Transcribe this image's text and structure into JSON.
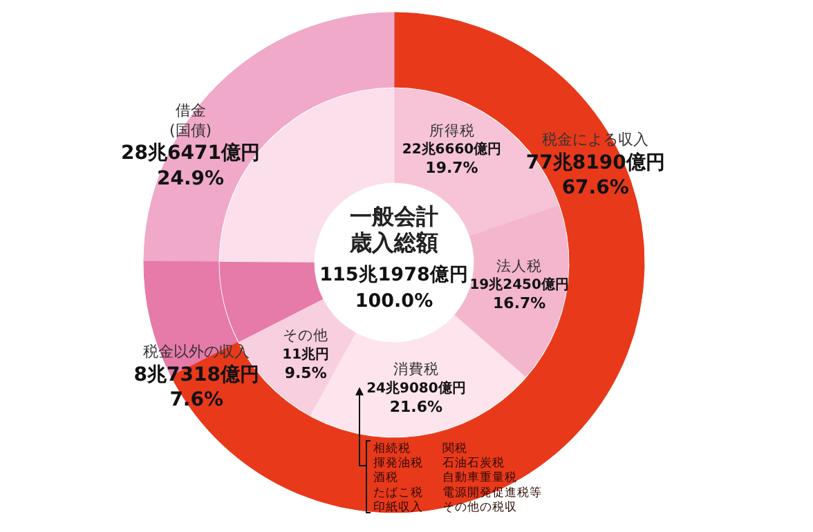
{
  "chart_data": [
    {
      "type": "donut",
      "title": "一般会計歳入総額",
      "subtitle": "115兆1978億円",
      "annotations": [
        "100.0%"
      ],
      "categories": [
        "税金による収入",
        "税金以外の収入",
        "借金\n(国債)"
      ],
      "values": [
        67.6,
        7.6,
        24.9
      ],
      "colors": [
        "#e8391b",
        "#e67aa8",
        "#f0a9c8"
      ],
      "value_labels": [
        "77兆8190億円\n67.6%",
        "8兆7318億円\n7.6%",
        "28兆6471億円\n24.9%"
      ]
    },
    {
      "type": "donut",
      "categories": [
        "所得税",
        "法人税",
        "消費税",
        "その他",
        null,
        null
      ],
      "values": [
        19.7,
        16.7,
        21.6,
        9.5,
        7.6,
        24.9
      ],
      "colors": [
        "#f6c3d7",
        "#f3b6cd",
        "#fde4ed",
        "#f8cfdf",
        "#e67aa8",
        "#fbdfea"
      ],
      "value_labels": [
        "22兆6660億円\n19.7%",
        "19兆2450億円\n16.7%",
        "24兆9080億円\n21.6%",
        "11兆円\n9.5%",
        null,
        null
      ],
      "annotations": [
        "相続税",
        "揮発油税",
        "酒税",
        "たばこ税",
        "印紙収入",
        "関税",
        "石油石炭税",
        "自動車重量税",
        "電源開発促進税等",
        "その他の税収"
      ]
    }
  ]
}
